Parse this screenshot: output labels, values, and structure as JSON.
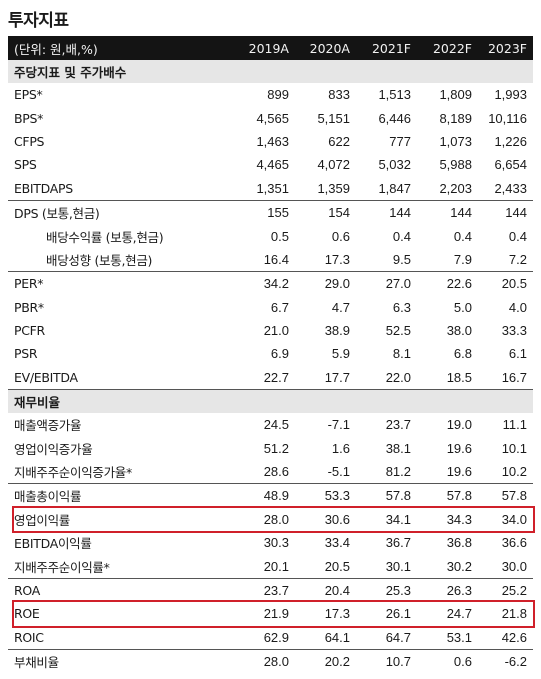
{
  "title": "투자지표",
  "header": {
    "unit": "(단위: 원,배,%)",
    "years": [
      "2019A",
      "2020A",
      "2021F",
      "2022F",
      "2023F"
    ]
  },
  "sections": [
    {
      "name": "주당지표 및 주가배수"
    },
    {
      "name": "재무비율"
    }
  ],
  "rows": [
    {
      "label": "EPS*",
      "values": [
        "899",
        "833",
        "1,513",
        "1,809",
        "1,993"
      ]
    },
    {
      "label": "BPS*",
      "values": [
        "4,565",
        "5,151",
        "6,446",
        "8,189",
        "10,116"
      ]
    },
    {
      "label": "CFPS",
      "values": [
        "1,463",
        "622",
        "777",
        "1,073",
        "1,226"
      ]
    },
    {
      "label": "SPS",
      "values": [
        "4,465",
        "4,072",
        "5,032",
        "5,988",
        "6,654"
      ]
    },
    {
      "label": "EBITDAPS",
      "values": [
        "1,351",
        "1,359",
        "1,847",
        "2,203",
        "2,433"
      ]
    },
    {
      "label": "DPS (보통,현금)",
      "values": [
        "155",
        "154",
        "144",
        "144",
        "144"
      ]
    },
    {
      "label": "배당수익률 (보통,현금)",
      "values": [
        "0.5",
        "0.6",
        "0.4",
        "0.4",
        "0.4"
      ]
    },
    {
      "label": "배당성향 (보통,현금)",
      "values": [
        "16.4",
        "17.3",
        "9.5",
        "7.9",
        "7.2"
      ]
    },
    {
      "label": "PER*",
      "values": [
        "34.2",
        "29.0",
        "27.0",
        "22.6",
        "20.5"
      ]
    },
    {
      "label": "PBR*",
      "values": [
        "6.7",
        "4.7",
        "6.3",
        "5.0",
        "4.0"
      ]
    },
    {
      "label": "PCFR",
      "values": [
        "21.0",
        "38.9",
        "52.5",
        "38.0",
        "33.3"
      ]
    },
    {
      "label": "PSR",
      "values": [
        "6.9",
        "5.9",
        "8.1",
        "6.8",
        "6.1"
      ]
    },
    {
      "label": "EV/EBITDA",
      "values": [
        "22.7",
        "17.7",
        "22.0",
        "18.5",
        "16.7"
      ]
    },
    {
      "label": "매출액증가율",
      "values": [
        "24.5",
        "-7.1",
        "23.7",
        "19.0",
        "11.1"
      ]
    },
    {
      "label": "영업이익증가율",
      "values": [
        "51.2",
        "1.6",
        "38.1",
        "19.6",
        "10.1"
      ]
    },
    {
      "label": "지배주주순이익증가율*",
      "values": [
        "28.6",
        "-5.1",
        "81.2",
        "19.6",
        "10.2"
      ]
    },
    {
      "label": "매출총이익률",
      "values": [
        "48.9",
        "53.3",
        "57.8",
        "57.8",
        "57.8"
      ]
    },
    {
      "label": "영업이익률",
      "values": [
        "28.0",
        "30.6",
        "34.1",
        "34.3",
        "34.0"
      ]
    },
    {
      "label": "EBITDA이익률",
      "values": [
        "30.3",
        "33.4",
        "36.7",
        "36.8",
        "36.6"
      ]
    },
    {
      "label": "지배주주순이익률*",
      "values": [
        "20.1",
        "20.5",
        "30.1",
        "30.2",
        "30.0"
      ]
    },
    {
      "label": "ROA",
      "values": [
        "23.7",
        "20.4",
        "25.3",
        "26.3",
        "25.2"
      ]
    },
    {
      "label": "ROE",
      "values": [
        "21.9",
        "17.3",
        "26.1",
        "24.7",
        "21.8"
      ]
    },
    {
      "label": "ROIC",
      "values": [
        "62.9",
        "64.1",
        "64.7",
        "53.1",
        "42.6"
      ]
    },
    {
      "label": "부채비율",
      "values": [
        "28.0",
        "20.2",
        "10.7",
        "0.6",
        "-6.2"
      ]
    }
  ],
  "highlight_color": "#d0202a"
}
